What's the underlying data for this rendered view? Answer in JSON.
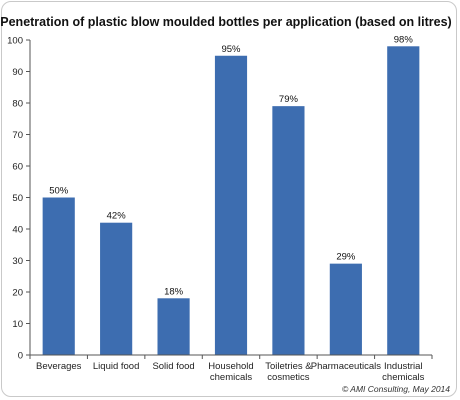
{
  "chart_data": {
    "type": "bar",
    "title": "Penetration of plastic blow moulded bottles per application (based on litres)",
    "categories": [
      [
        "Beverages"
      ],
      [
        "Liquid food"
      ],
      [
        "Solid food"
      ],
      [
        "Household",
        "chemicals"
      ],
      [
        "Toiletries &",
        "cosmetics"
      ],
      [
        "Pharmaceuticals"
      ],
      [
        "Industrial",
        "chemicals"
      ]
    ],
    "values": [
      50,
      42,
      18,
      95,
      79,
      29,
      98
    ],
    "data_labels": [
      "50%",
      "42%",
      "18%",
      "95%",
      "79%",
      "29%",
      "98%"
    ],
    "ylim": [
      0,
      100
    ],
    "yticks": [
      0,
      10,
      20,
      30,
      40,
      50,
      60,
      70,
      80,
      90,
      100
    ],
    "grid": false,
    "legend": "none",
    "bar_color": "#3d6db0"
  },
  "credit": "© AMI Consulting, May 2014"
}
